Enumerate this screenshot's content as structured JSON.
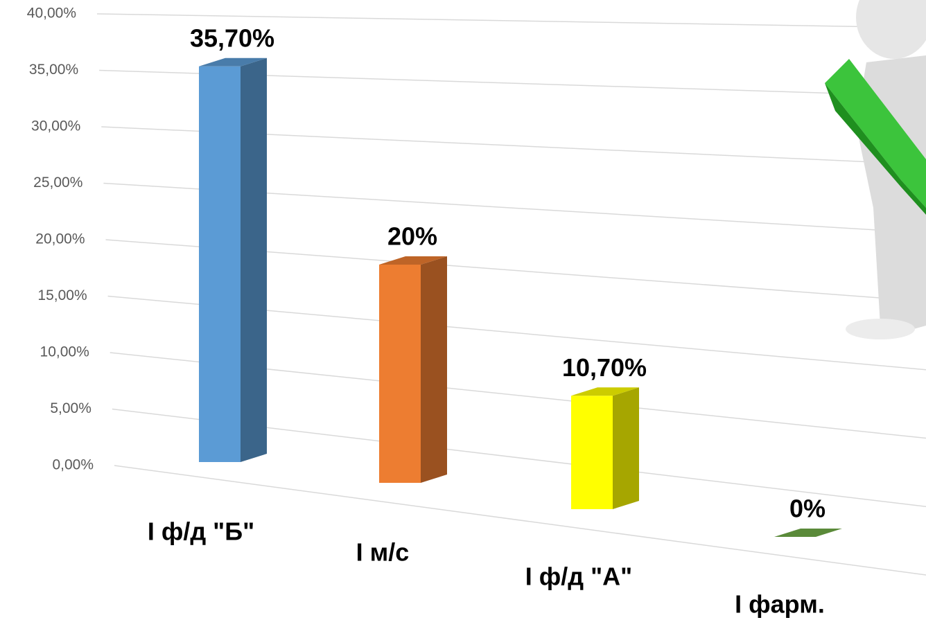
{
  "chart_data": {
    "type": "bar3d",
    "categories": [
      "I ф/д \"Б\"",
      "I м/с",
      "I ф/д \"А\"",
      "I фарм."
    ],
    "values": [
      35.7,
      20,
      10.7,
      0
    ],
    "value_labels": [
      "35,70%",
      "20%",
      "10,70%",
      "0%"
    ],
    "colors": [
      "#5b9bd5",
      "#ed7d31",
      "#ffff00",
      "#70ad47"
    ],
    "ylim": [
      0,
      40
    ],
    "yticks": [
      {
        "value": 0,
        "label": "0,00%"
      },
      {
        "value": 5,
        "label": "5,00%"
      },
      {
        "value": 10,
        "label": "10,00%"
      },
      {
        "value": 15,
        "label": "15,00%"
      },
      {
        "value": 20,
        "label": "20,00%"
      },
      {
        "value": 25,
        "label": "25,00%"
      },
      {
        "value": 30,
        "label": "30,00%"
      },
      {
        "value": 35,
        "label": "35,00%"
      },
      {
        "value": 40,
        "label": "40,00%"
      }
    ],
    "grid": true
  }
}
